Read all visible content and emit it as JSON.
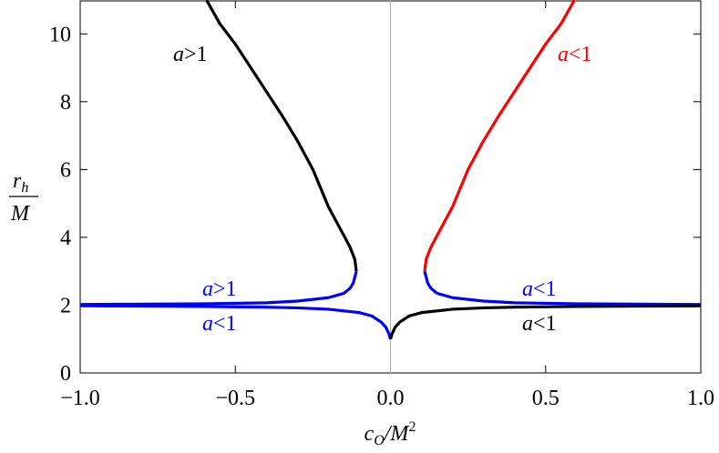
{
  "chart_data": {
    "type": "line",
    "x_label": {
      "base": "c",
      "sub": "O",
      "mid": "/M",
      "sup": "2"
    },
    "y_label": {
      "numerator": "r",
      "numerator_sub": "h",
      "denominator": "M"
    },
    "xlim": [
      -1,
      1
    ],
    "ylim": [
      0,
      11
    ],
    "xticks": [
      {
        "value": -1,
        "label": "−1.0"
      },
      {
        "value": -0.5,
        "label": "−0.5"
      },
      {
        "value": 0,
        "label": "0.0"
      },
      0.5,
      {
        "value": 1,
        "label": "1.0"
      }
    ],
    "yticks": [
      0,
      2,
      4,
      6,
      8,
      10
    ],
    "grid": false,
    "series": [
      {
        "color": "#000000",
        "x": [
          -0.11,
          -0.115,
          -0.13,
          -0.15,
          -0.2,
          -0.25,
          -0.3,
          -0.35,
          -0.4,
          -0.45,
          -0.5,
          -0.55,
          -0.593
        ],
        "values": [
          3,
          3.35,
          3.7,
          4.05,
          4.9,
          6.0,
          6.85,
          7.6,
          8.3,
          9.0,
          9.7,
          10.3,
          11
        ]
      },
      {
        "color": "#ff0000",
        "x": [
          0.11,
          0.115,
          0.13,
          0.15,
          0.2,
          0.25,
          0.3,
          0.35,
          0.4,
          0.45,
          0.5,
          0.55,
          0.593
        ],
        "values": [
          3,
          3.35,
          3.7,
          4.05,
          4.9,
          6.0,
          6.85,
          7.6,
          8.3,
          9.0,
          9.7,
          10.3,
          11
        ]
      },
      {
        "color": "#0000ff",
        "x": [
          -1,
          -0.8,
          -0.6,
          -0.4,
          -0.3,
          -0.2,
          -0.15,
          -0.13,
          -0.12,
          -0.11
        ],
        "values": [
          2.02,
          2.03,
          2.04,
          2.07,
          2.12,
          2.22,
          2.35,
          2.5,
          2.65,
          3.0
        ]
      },
      {
        "color": "#0000ff",
        "x": [
          1,
          0.8,
          0.6,
          0.4,
          0.3,
          0.2,
          0.15,
          0.13,
          0.12,
          0.11
        ],
        "values": [
          2.02,
          2.03,
          2.04,
          2.07,
          2.12,
          2.22,
          2.35,
          2.5,
          2.65,
          3.0
        ]
      },
      {
        "color": "#0000ff",
        "x": [
          -1,
          -0.8,
          -0.6,
          -0.4,
          -0.3,
          -0.2,
          -0.1,
          -0.06,
          -0.03,
          -0.015,
          -0.005,
          0
        ],
        "values": [
          1.98,
          1.97,
          1.96,
          1.94,
          1.92,
          1.88,
          1.78,
          1.68,
          1.5,
          1.35,
          1.15,
          1.0
        ]
      },
      {
        "color": "#000000",
        "x": [
          1,
          0.8,
          0.6,
          0.4,
          0.3,
          0.2,
          0.1,
          0.06,
          0.03,
          0.015,
          0.005,
          0
        ],
        "values": [
          1.98,
          1.97,
          1.96,
          1.94,
          1.92,
          1.88,
          1.78,
          1.68,
          1.5,
          1.35,
          1.15,
          1.0
        ]
      }
    ],
    "annotations": [
      {
        "italic": "a",
        "rest": ">1",
        "color": "#000000"
      },
      {
        "italic": "a",
        "rest": "<1",
        "color": "#ff0000"
      },
      {
        "italic": "a",
        "rest": ">1",
        "color": "#0000ff"
      },
      {
        "italic": "a",
        "rest": "<1",
        "color": "#0000ff"
      },
      {
        "italic": "a",
        "rest": "<1",
        "color": "#0000ff"
      },
      {
        "italic": "a",
        "rest": "<1",
        "color": "#000000"
      }
    ]
  }
}
